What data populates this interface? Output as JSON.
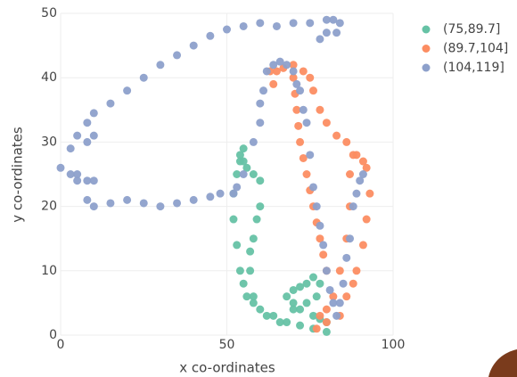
{
  "chart_data": {
    "type": "scatter",
    "xlabel": "x co-ordinates",
    "ylabel": "y co-ordinates",
    "xlim": [
      0,
      100
    ],
    "ylim": [
      0,
      50
    ],
    "xticks": [
      0,
      50,
      100
    ],
    "yticks": [
      0,
      10,
      20,
      30,
      40,
      50
    ],
    "grid": true,
    "legend": "right",
    "series": [
      {
        "name": "(75,89.7]",
        "color": "#66c2a5",
        "x": [
          55,
          54,
          53,
          52,
          52,
          53,
          54,
          55,
          56,
          58,
          60,
          64,
          68,
          72,
          76,
          80,
          80,
          78,
          76,
          72,
          70,
          68,
          70,
          72,
          74,
          76,
          78,
          77,
          74,
          70,
          66,
          62,
          58,
          57,
          57,
          58,
          59,
          60,
          60,
          58,
          56,
          55,
          54
        ],
        "values": [
          29,
          27,
          25,
          22,
          18,
          14,
          10,
          8,
          6,
          5,
          4,
          3,
          2,
          1.5,
          1,
          0.5,
          2,
          2.5,
          3,
          4,
          5,
          6,
          7,
          7.5,
          8,
          9,
          8,
          6,
          5,
          4,
          2,
          3,
          6,
          10,
          13,
          15,
          18,
          20,
          24,
          25,
          26,
          27,
          28
        ]
      },
      {
        "name": "(89.7,104]",
        "color": "#fc8d62",
        "x": [
          63,
          64,
          65,
          67,
          70,
          73,
          75,
          76,
          78,
          80,
          83,
          86,
          89,
          91,
          92,
          93,
          92,
          91,
          89,
          88,
          86,
          84,
          80,
          77,
          78,
          80,
          82,
          84,
          86,
          87,
          87,
          88,
          70,
          70.5,
          71,
          71.5,
          72,
          73,
          74,
          75,
          76,
          77,
          78,
          79,
          80
        ],
        "values": [
          41,
          39,
          41,
          41.5,
          42,
          41,
          40,
          38,
          35,
          33,
          31,
          30,
          28,
          27,
          26,
          22,
          18,
          14,
          10,
          8,
          6,
          3,
          2,
          1,
          3,
          4,
          6,
          10,
          15,
          20,
          25,
          28,
          40,
          37.5,
          35,
          32.5,
          30,
          27.5,
          25,
          22.5,
          20,
          17.5,
          15,
          12.5,
          10
        ]
      },
      {
        "name": "(104,119]",
        "color": "#8da0cb",
        "x": [
          0,
          3,
          5,
          8,
          10,
          15,
          20,
          25,
          30,
          35,
          40,
          45,
          50,
          55,
          60,
          65,
          70,
          75,
          80,
          82,
          84,
          83,
          80,
          78,
          3,
          5,
          8,
          10,
          15,
          20,
          25,
          30,
          35,
          40,
          45,
          48,
          52,
          53,
          55,
          58,
          60,
          60,
          61,
          62,
          64,
          66,
          68,
          70,
          71,
          72,
          73,
          74,
          75,
          76,
          77,
          78,
          79,
          80,
          81,
          82,
          83,
          84,
          85,
          86,
          87,
          88,
          89,
          90,
          91,
          5,
          8,
          10,
          10,
          8
        ],
        "values": [
          26,
          29,
          31,
          33,
          34.5,
          36,
          38,
          40,
          42,
          43.5,
          45,
          46.5,
          47.5,
          48,
          48.5,
          48,
          48.5,
          48.5,
          49,
          49,
          48.5,
          47,
          47,
          46,
          25,
          24,
          21,
          20,
          20.5,
          21,
          20.5,
          20,
          20.5,
          21,
          21.5,
          22,
          22,
          23,
          25,
          30,
          33,
          36,
          38,
          41,
          42,
          42.5,
          42,
          41,
          39,
          38,
          35,
          33,
          28,
          23,
          20,
          17,
          14,
          10,
          7,
          5,
          3,
          5,
          8,
          12,
          15,
          20,
          22,
          24,
          25,
          25,
          24,
          24,
          31,
          30
        ]
      }
    ]
  }
}
